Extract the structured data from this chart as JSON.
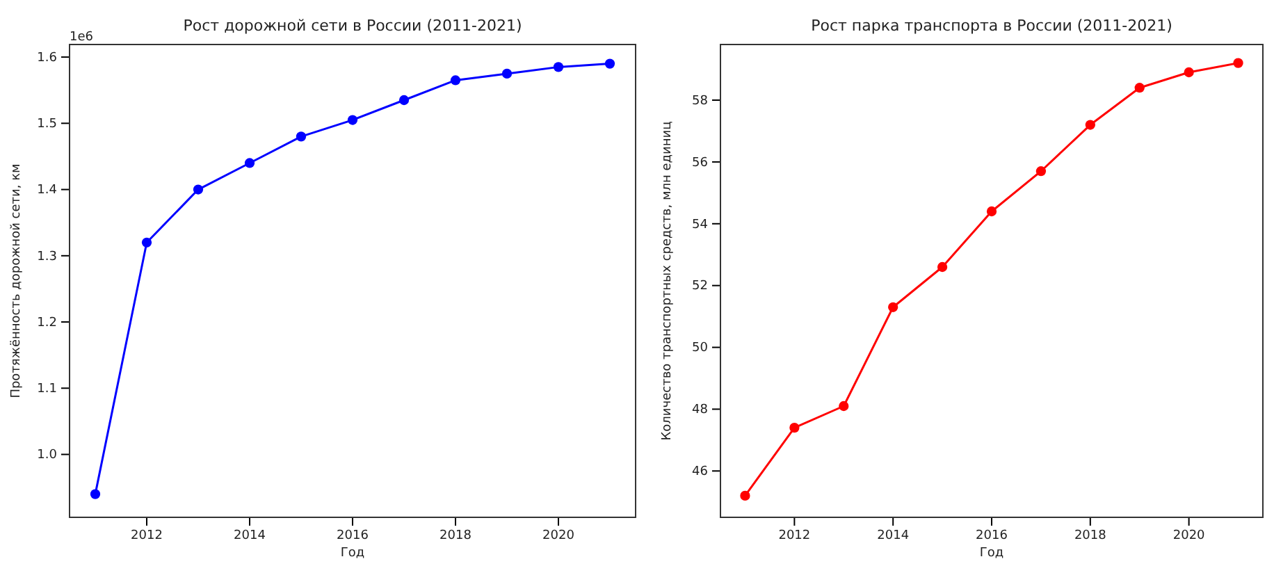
{
  "chart_data": [
    {
      "type": "line",
      "title": "Рост дорожной сети в России (2011-2021)",
      "xlabel": "Год",
      "ylabel": "Протяжённость дорожной сети, км",
      "annotations": [
        "1e6"
      ],
      "x": [
        2011,
        2012,
        2013,
        2014,
        2015,
        2016,
        2017,
        2018,
        2019,
        2020,
        2021
      ],
      "series": [
        {
          "color": "#0000ff",
          "values": [
            0.94,
            1.32,
            1.4,
            1.44,
            1.48,
            1.505,
            1.535,
            1.565,
            1.575,
            1.585,
            1.59
          ]
        }
      ],
      "xlim": [
        2010.5,
        2021.5
      ],
      "xticks": [
        2012,
        2014,
        2016,
        2018,
        2020
      ],
      "ylim": [
        0.905,
        1.619
      ],
      "yticks": [
        {
          "value": 1,
          "label": "1.0"
        },
        1.1,
        1.2,
        1.3,
        1.4,
        1.5,
        1.6
      ],
      "marker": "circle",
      "line_style": "solid"
    },
    {
      "type": "line",
      "title": "Рост парка транспорта в России (2011-2021)",
      "xlabel": "Год",
      "ylabel": "Количество транспортных средств, млн единиц",
      "x": [
        2011,
        2012,
        2013,
        2014,
        2015,
        2016,
        2017,
        2018,
        2019,
        2020,
        2021
      ],
      "series": [
        {
          "color": "#ff0000",
          "values": [
            45.2,
            47.4,
            48.1,
            51.3,
            52.6,
            54.4,
            55.7,
            57.2,
            58.4,
            58.9,
            59.2
          ]
        }
      ],
      "xlim": [
        2010.5,
        2021.5
      ],
      "xticks": [
        2012,
        2014,
        2016,
        2018,
        2020
      ],
      "ylim": [
        44.5,
        59.8
      ],
      "yticks": [
        46,
        48,
        50,
        52,
        54,
        56,
        58
      ],
      "marker": "circle",
      "line_style": "solid"
    }
  ]
}
